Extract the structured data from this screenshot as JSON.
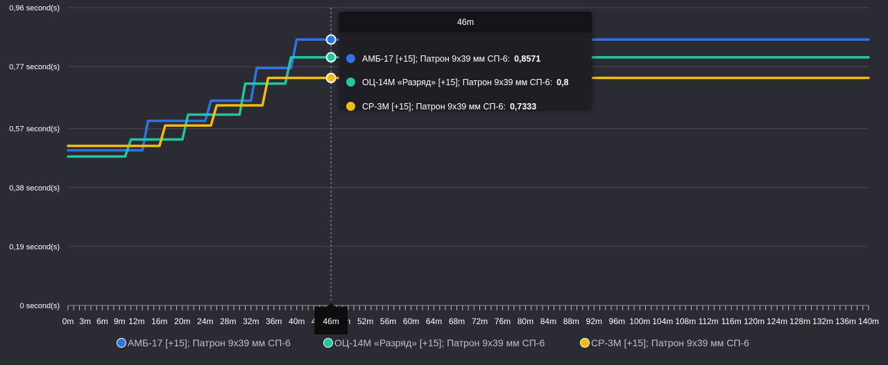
{
  "colors": {
    "background": "#2b2b34",
    "grid": "#4a4a52",
    "axis_text": "#ffffff",
    "crosshair": "#9a9aa2"
  },
  "tooltip": {
    "header": "46m",
    "rows": [
      {
        "label": "АМБ-17 [+15]; Патрон 9х39 мм СП-6:",
        "value": "0,8571",
        "color": "#2e74e6"
      },
      {
        "label": "ОЦ-14М «Разряд» [+15]; Патрон 9х39 мм СП-6:",
        "value": "0,8",
        "color": "#21c7a0"
      },
      {
        "label": "СР-3М [+15]; Патрон 9х39 мм СП-6:",
        "value": "0,7333",
        "color": "#f2bd0f"
      }
    ]
  },
  "crosshair_label": "46m",
  "legend": [
    {
      "name": "АМБ-17 [+15]; Патрон 9х39 мм СП-6",
      "color": "#2e74e6"
    },
    {
      "name": "ОЦ-14М «Разряд» [+15]; Патрон 9х39 мм СП-6",
      "color": "#21c7a0"
    },
    {
      "name": "СР-3М [+15]; Патрон 9х39 мм СП-6",
      "color": "#f2bd0f"
    }
  ],
  "chart_data": {
    "type": "line",
    "xlim": [
      0,
      140
    ],
    "ylim": [
      0,
      0.96
    ],
    "y_ticks": [
      {
        "value": 0,
        "label": "0 second(s)"
      },
      {
        "value": 0.19,
        "label": "0,19 second(s)"
      },
      {
        "value": 0.38,
        "label": "0,38 second(s)"
      },
      {
        "value": 0.57,
        "label": "0,57 second(s)"
      },
      {
        "value": 0.77,
        "label": "0,77 second(s)"
      },
      {
        "value": 0.96,
        "label": "0,96 second(s)"
      }
    ],
    "x_ticks": [
      {
        "value": 0,
        "label": "0m"
      },
      {
        "value": 3,
        "label": "3m"
      },
      {
        "value": 6,
        "label": "6m"
      },
      {
        "value": 9,
        "label": "9m"
      },
      {
        "value": 12,
        "label": "12m"
      },
      {
        "value": 16,
        "label": "16m"
      },
      {
        "value": 20,
        "label": "20m"
      },
      {
        "value": 24,
        "label": "24m"
      },
      {
        "value": 28,
        "label": "28m"
      },
      {
        "value": 32,
        "label": "32m"
      },
      {
        "value": 36,
        "label": "36m"
      },
      {
        "value": 40,
        "label": "40m"
      },
      {
        "value": 44,
        "label": "44m"
      },
      {
        "value": 48,
        "label": "48m"
      },
      {
        "value": 52,
        "label": "52m"
      },
      {
        "value": 56,
        "label": "56m"
      },
      {
        "value": 60,
        "label": "60m"
      },
      {
        "value": 64,
        "label": "64m"
      },
      {
        "value": 68,
        "label": "68m"
      },
      {
        "value": 72,
        "label": "72m"
      },
      {
        "value": 76,
        "label": "76m"
      },
      {
        "value": 80,
        "label": "80m"
      },
      {
        "value": 84,
        "label": "84m"
      },
      {
        "value": 88,
        "label": "88m"
      },
      {
        "value": 92,
        "label": "92m"
      },
      {
        "value": 96,
        "label": "96m"
      },
      {
        "value": 100,
        "label": "100m"
      },
      {
        "value": 104,
        "label": "104m"
      },
      {
        "value": 108,
        "label": "108m"
      },
      {
        "value": 112,
        "label": "112m"
      },
      {
        "value": 116,
        "label": "116m"
      },
      {
        "value": 120,
        "label": "120m"
      },
      {
        "value": 124,
        "label": "124m"
      },
      {
        "value": 128,
        "label": "128m"
      },
      {
        "value": 132,
        "label": "132m"
      },
      {
        "value": 136,
        "label": "136m"
      },
      {
        "value": 140,
        "label": "140m"
      }
    ],
    "grid": true,
    "legend_position": "bottom",
    "crosshair_x": 46,
    "series": [
      {
        "name": "АМБ-17 [+15]; Патрон 9х39 мм СП-6",
        "color": "#2e74e6",
        "points": [
          [
            0,
            0.5
          ],
          [
            13,
            0.5
          ],
          [
            14,
            0.595
          ],
          [
            24,
            0.595
          ],
          [
            25,
            0.66
          ],
          [
            32,
            0.66
          ],
          [
            33,
            0.765
          ],
          [
            39,
            0.765
          ],
          [
            40,
            0.8571
          ],
          [
            140,
            0.8571
          ]
        ]
      },
      {
        "name": "ОЦ-14М «Разряд» [+15]; Патрон 9х39 мм СП-6",
        "color": "#21c7a0",
        "points": [
          [
            0,
            0.48
          ],
          [
            10,
            0.48
          ],
          [
            11,
            0.535
          ],
          [
            20,
            0.535
          ],
          [
            21,
            0.615
          ],
          [
            30,
            0.615
          ],
          [
            31,
            0.715
          ],
          [
            38,
            0.715
          ],
          [
            39,
            0.8
          ],
          [
            140,
            0.8
          ]
        ]
      },
      {
        "name": "СР-3М [+15]; Патрон 9х39 мм СП-6",
        "color": "#f2bd0f",
        "points": [
          [
            0,
            0.5143
          ],
          [
            16,
            0.5143
          ],
          [
            17,
            0.58
          ],
          [
            25,
            0.58
          ],
          [
            26,
            0.645
          ],
          [
            34,
            0.645
          ],
          [
            35,
            0.7333
          ],
          [
            140,
            0.7333
          ]
        ]
      }
    ]
  }
}
